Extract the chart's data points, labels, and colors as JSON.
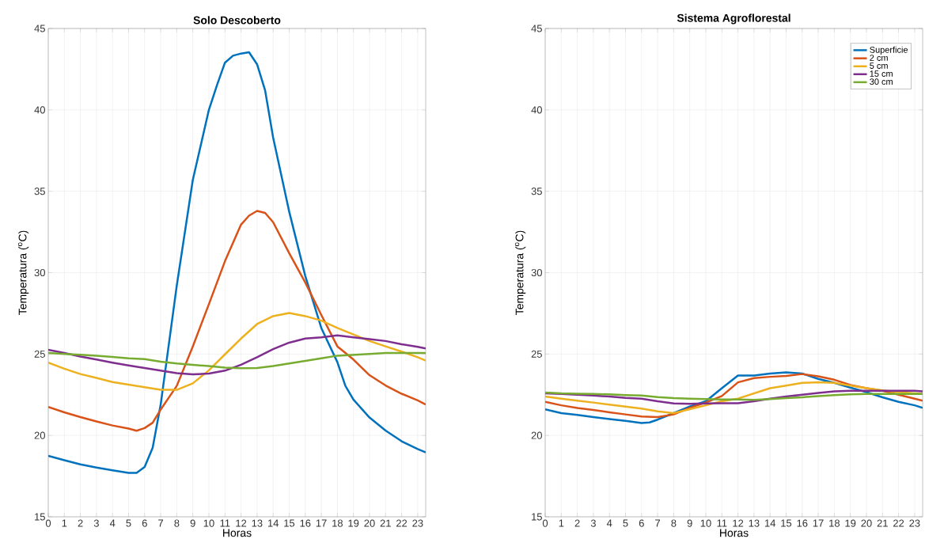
{
  "chart_data": [
    {
      "type": "line",
      "title": "Solo Descoberto",
      "xlabel": "Horas",
      "ylabel": "Temperatura ($^{o}$C)",
      "xlim": [
        0,
        23.5
      ],
      "ylim": [
        15,
        45
      ],
      "xticks": [
        0,
        1,
        2,
        3,
        4,
        5,
        6,
        7,
        8,
        9,
        10,
        11,
        12,
        13,
        14,
        15,
        16,
        17,
        18,
        19,
        20,
        21,
        22,
        23
      ],
      "yticks": [
        15,
        20,
        25,
        30,
        35,
        40,
        45
      ],
      "grid": true,
      "x": [
        0,
        1,
        2,
        3,
        4,
        5,
        6,
        7,
        8,
        9,
        10,
        11,
        12,
        13,
        14,
        15,
        16,
        17,
        18,
        19,
        20,
        21,
        22,
        23,
        23.5
      ],
      "series": [
        {
          "color": "#0072bd",
          "x": [
            0,
            1,
            2,
            3,
            4,
            5,
            5.5,
            6,
            6.5,
            7,
            8,
            9,
            10,
            10.5,
            11,
            11.5,
            12,
            12.5,
            13,
            13.5,
            14,
            15,
            16,
            17,
            18,
            18.5,
            19,
            20,
            21,
            22,
            23,
            23.5
          ],
          "values": [
            18.75,
            18.48,
            18.22,
            18.03,
            17.86,
            17.7,
            17.7,
            18.06,
            19.24,
            21.9,
            29.2,
            35.7,
            40.0,
            41.5,
            42.9,
            43.33,
            43.46,
            43.54,
            42.8,
            41.2,
            38.3,
            33.75,
            29.8,
            26.6,
            24.5,
            23.04,
            22.2,
            21.1,
            20.3,
            19.64,
            19.16,
            18.96
          ]
        },
        {
          "color": "#d95319",
          "x": [
            0,
            1,
            2,
            3,
            4,
            5,
            5.5,
            6,
            6.5,
            7,
            8,
            9,
            10,
            11,
            12,
            12.5,
            13,
            13.5,
            14,
            15,
            16,
            17,
            18,
            19,
            20,
            21,
            22,
            23,
            23.5
          ],
          "values": [
            21.75,
            21.42,
            21.13,
            20.86,
            20.61,
            20.42,
            20.29,
            20.45,
            20.78,
            21.59,
            23.04,
            25.47,
            28.06,
            30.7,
            32.95,
            33.5,
            33.79,
            33.67,
            33.1,
            31.2,
            29.4,
            27.4,
            25.47,
            24.66,
            23.7,
            23.07,
            22.56,
            22.15,
            21.9
          ]
        },
        {
          "color": "#edb120",
          "values": [
            24.47,
            24.1,
            23.77,
            23.53,
            23.28,
            23.12,
            22.96,
            22.8,
            22.8,
            23.2,
            24.0,
            24.98,
            25.95,
            26.84,
            27.33,
            27.52,
            27.33,
            27.05,
            26.6,
            26.2,
            25.8,
            25.47,
            25.15,
            24.8,
            24.6
          ]
        },
        {
          "color": "#7e2f8e",
          "values": [
            25.26,
            25.06,
            24.85,
            24.66,
            24.47,
            24.3,
            24.14,
            23.98,
            23.82,
            23.75,
            23.8,
            23.98,
            24.34,
            24.8,
            25.3,
            25.7,
            25.95,
            26.03,
            26.15,
            26.03,
            25.92,
            25.8,
            25.6,
            25.44,
            25.34
          ]
        },
        {
          "color": "#77ac30",
          "values": [
            25.06,
            25.0,
            24.95,
            24.89,
            24.82,
            24.74,
            24.69,
            24.53,
            24.42,
            24.34,
            24.26,
            24.17,
            24.13,
            24.14,
            24.26,
            24.42,
            24.58,
            24.74,
            24.9,
            24.95,
            25.0,
            25.06,
            25.06,
            25.06,
            25.06
          ]
        }
      ]
    },
    {
      "type": "line",
      "title": "Sistema Agroflorestal",
      "xlabel": "Horas",
      "ylabel": "Temperatura ($^{o}$C)",
      "xlim": [
        0,
        23.5
      ],
      "ylim": [
        15,
        45
      ],
      "xticks": [
        0,
        1,
        2,
        3,
        4,
        5,
        6,
        7,
        8,
        9,
        10,
        11,
        12,
        13,
        14,
        15,
        16,
        17,
        18,
        19,
        20,
        21,
        22,
        23
      ],
      "yticks": [
        15,
        20,
        25,
        30,
        35,
        40,
        45
      ],
      "grid": true,
      "legend": "top right",
      "x": [
        0,
        1,
        2,
        3,
        4,
        5,
        6,
        7,
        8,
        9,
        10,
        11,
        12,
        13,
        14,
        15,
        16,
        17,
        18,
        19,
        20,
        21,
        22,
        23,
        23.5
      ],
      "series": [
        {
          "name": "Superficie",
          "color": "#0072bd",
          "x": [
            0,
            1,
            2,
            3,
            4,
            5,
            6,
            6.5,
            7,
            8,
            9,
            10,
            11,
            12,
            13,
            14,
            15,
            16,
            17,
            18,
            19,
            20,
            21,
            22,
            23,
            23.5
          ],
          "values": [
            21.6,
            21.37,
            21.26,
            21.13,
            21.0,
            20.89,
            20.76,
            20.8,
            20.97,
            21.37,
            21.77,
            22.1,
            22.9,
            23.68,
            23.68,
            23.8,
            23.87,
            23.8,
            23.47,
            23.23,
            22.94,
            22.66,
            22.34,
            22.06,
            21.85,
            21.7
          ]
        },
        {
          "name": "2 cm",
          "color": "#d95319",
          "values": [
            22.06,
            21.85,
            21.69,
            21.56,
            21.42,
            21.29,
            21.16,
            21.13,
            21.29,
            21.69,
            22.02,
            22.42,
            23.26,
            23.52,
            23.6,
            23.66,
            23.77,
            23.63,
            23.42,
            23.1,
            22.9,
            22.74,
            22.5,
            22.26,
            22.13
          ]
        },
        {
          "name": "5 cm",
          "color": "#edb120",
          "values": [
            22.39,
            22.26,
            22.13,
            22.02,
            21.89,
            21.77,
            21.65,
            21.48,
            21.37,
            21.61,
            21.85,
            22.1,
            22.26,
            22.58,
            22.9,
            23.06,
            23.23,
            23.26,
            23.23,
            23.06,
            22.9,
            22.77,
            22.66,
            22.58,
            22.55
          ]
        },
        {
          "name": "15 cm",
          "color": "#7e2f8e",
          "values": [
            22.58,
            22.55,
            22.5,
            22.45,
            22.39,
            22.31,
            22.26,
            22.1,
            21.97,
            21.94,
            21.97,
            21.98,
            21.98,
            22.1,
            22.26,
            22.39,
            22.5,
            22.61,
            22.71,
            22.74,
            22.74,
            22.74,
            22.74,
            22.74,
            22.71
          ]
        },
        {
          "name": "30 cm",
          "color": "#77ac30",
          "values": [
            22.63,
            22.58,
            22.56,
            22.55,
            22.52,
            22.48,
            22.45,
            22.35,
            22.29,
            22.26,
            22.23,
            22.21,
            22.21,
            22.18,
            22.23,
            22.29,
            22.34,
            22.42,
            22.48,
            22.53,
            22.55,
            22.55,
            22.55,
            22.55,
            22.55
          ]
        }
      ]
    }
  ]
}
